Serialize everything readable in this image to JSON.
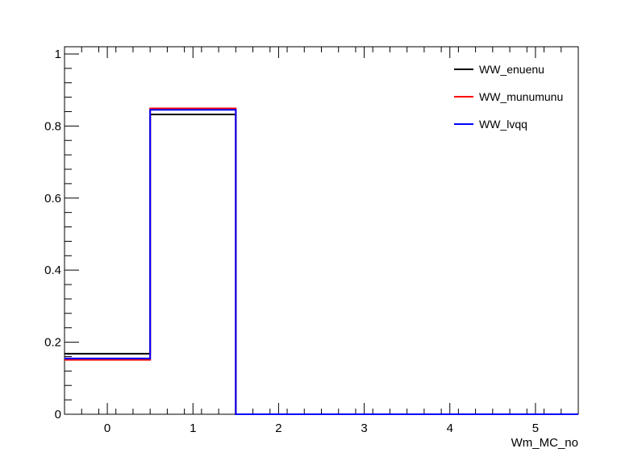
{
  "chart_data": {
    "type": "histogram",
    "title": "",
    "xlabel": "Wm_MC_no",
    "ylabel": "",
    "xlim": [
      -0.5,
      5.5
    ],
    "ylim": [
      0,
      1.02
    ],
    "grid": false,
    "legend_position": "top-right",
    "bin_edges": [
      -0.5,
      0.5,
      1.5,
      2.5,
      3.5,
      4.5,
      5.5
    ],
    "x_ticks": [
      0,
      1,
      2,
      3,
      4,
      5
    ],
    "y_ticks": [
      0,
      0.2,
      0.4,
      0.6,
      0.8,
      1
    ],
    "series": [
      {
        "name": "WW_enuenu",
        "color": "#000000",
        "values": [
          0.168,
          0.832,
          0,
          0,
          0,
          0
        ]
      },
      {
        "name": "WW_munumunu",
        "color": "#ff0000",
        "values": [
          0.151,
          0.849,
          0,
          0,
          0,
          0
        ]
      },
      {
        "name": "WW_lvqq",
        "color": "#0000ff",
        "values": [
          0.155,
          0.845,
          0,
          0,
          0,
          0
        ]
      }
    ]
  }
}
